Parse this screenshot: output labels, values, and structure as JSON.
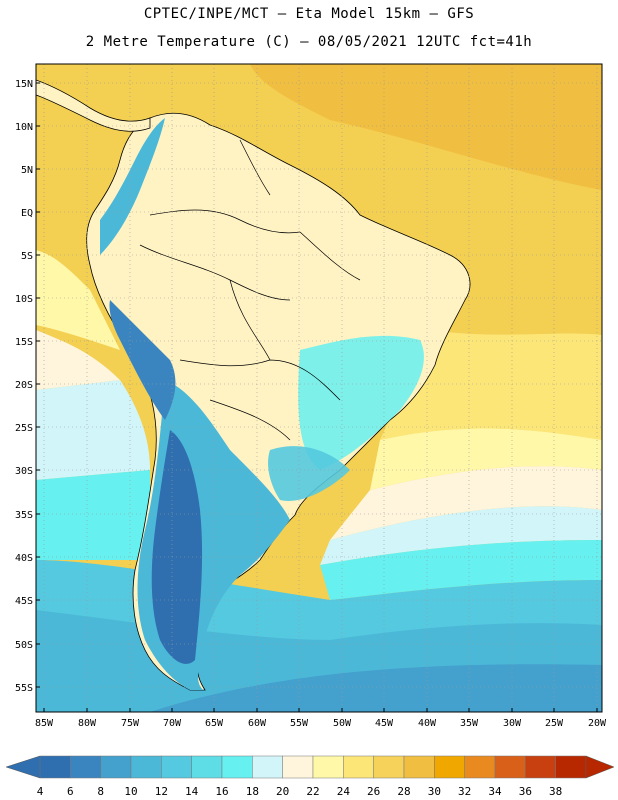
{
  "header": {
    "line1": "CPTEC/INPE/MCT –  Eta Model 15km – GFS",
    "line2": "2 Metre Temperature (C) – 08/05/2021 12UTC fct=41h"
  },
  "map": {
    "lat_labels": [
      "15N",
      "10N",
      "5N",
      "EQ",
      "5S",
      "10S",
      "15S",
      "20S",
      "25S",
      "30S",
      "35S",
      "40S",
      "45S",
      "50S",
      "55S"
    ],
    "lon_labels": [
      "85W",
      "80W",
      "75W",
      "70W",
      "65W",
      "60W",
      "55W",
      "50W",
      "45W",
      "40W",
      "35W",
      "30W",
      "25W",
      "20W"
    ],
    "ocean_color": "#f3cf52",
    "land_color": "#fff3c4"
  },
  "colorbar": {
    "levels": [
      "4",
      "6",
      "8",
      "10",
      "12",
      "14",
      "16",
      "18",
      "20",
      "22",
      "24",
      "26",
      "28",
      "30",
      "32",
      "34",
      "36",
      "38"
    ],
    "colors": [
      "#2f6fb0",
      "#3a85c0",
      "#44a0cc",
      "#4cb8d8",
      "#55c9df",
      "#5fdde6",
      "#66f0f0",
      "#d2f5fa",
      "#fff5dc",
      "#fff8a8",
      "#fde678",
      "#f6d25a",
      "#f0be40",
      "#f0a800",
      "#e88a20",
      "#d86018",
      "#c84010",
      "#b82800"
    ]
  }
}
